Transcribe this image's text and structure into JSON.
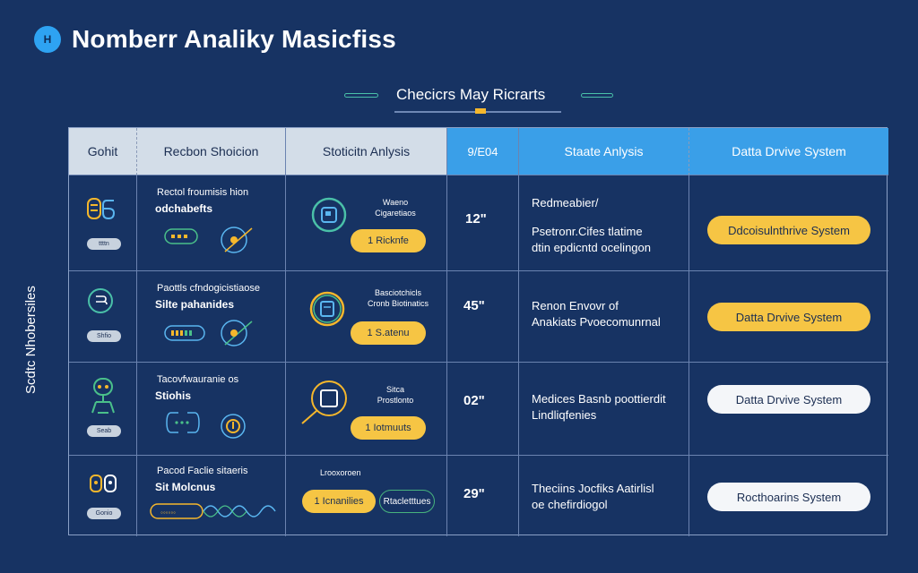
{
  "app": {
    "logo_glyph": "H",
    "title": "Nomberr Analiky Masicfiss"
  },
  "subtitle": "Checicrs May Ricrarts",
  "side_label": "Scdtc Nhobersiles",
  "colors": {
    "background": "#173363",
    "accent_blue": "#3a9fe8",
    "yellow": "#f6c544",
    "green": "#4ac0a8",
    "header_light": "#d3dde8"
  },
  "columns": [
    "Gohit",
    "Recbon Shoicion",
    "Stoticitn Anlysis",
    "9/E04",
    "Staate Anlysis",
    "Datta Drvive System"
  ],
  "rows": [
    {
      "badge": "ttttn",
      "title": "Rectol froumisis hion",
      "bold": "odchabefts",
      "mid_small": "Waeno\nCigaretiaos",
      "mid_pill": "1 Ricknfe",
      "metric": "12\"",
      "desc_lines": [
        "Redmeabier/",
        "Psetronr.Cifes tlatime",
        "dtin epdicntd ocelingon"
      ],
      "button": "Ddcoisulnthrive System",
      "button_style": "yellow",
      "icon_a": "box-icon",
      "icon_b": "square-ring-icon"
    },
    {
      "badge": "Shfio",
      "title": "Paottls cfndogicistiaose",
      "bold": "Silte pahanides",
      "mid_small": "Basciotchicls\nCronb Biotinatics",
      "mid_pill": "1 S.atenu",
      "metric": "45\"",
      "desc_lines": [
        "Renon Envovr  of",
        "Anakiats Pvoecomunrnal"
      ],
      "button": "Datta Drvive System",
      "button_style": "yellow",
      "icon_a": "coin-icon",
      "icon_b": "document-icon"
    },
    {
      "badge": "Seab",
      "title": "Tacovfwauranie os",
      "bold": "Stiohis",
      "mid_small": "Sitca\nProstlonto",
      "mid_pill": "1 Iotmuuts",
      "metric": "02\"",
      "desc_lines": [
        "Medices Basnb poottierdit",
        "Lindliqfenies"
      ],
      "button": "Datta Drvive System",
      "button_style": "white",
      "icon_a": "robot-icon",
      "icon_b": "magnifier-icon"
    },
    {
      "badge": "Gonio",
      "title": "Pacod Faclie sitaeris",
      "bold": "Sit Molcnus",
      "mid_small": "Lrooxoroen",
      "mid_pill": "1 Icnanilies",
      "mid_pill2": "Rtacletttues",
      "metric": "29\"",
      "desc_lines": [
        "Theciins Jocfiks Aatirlisl",
        "oe chefirdiogol"
      ],
      "button": "Rocthoarins System",
      "button_style": "white",
      "icon_a": "cluster-icon",
      "icon_b": null
    }
  ]
}
